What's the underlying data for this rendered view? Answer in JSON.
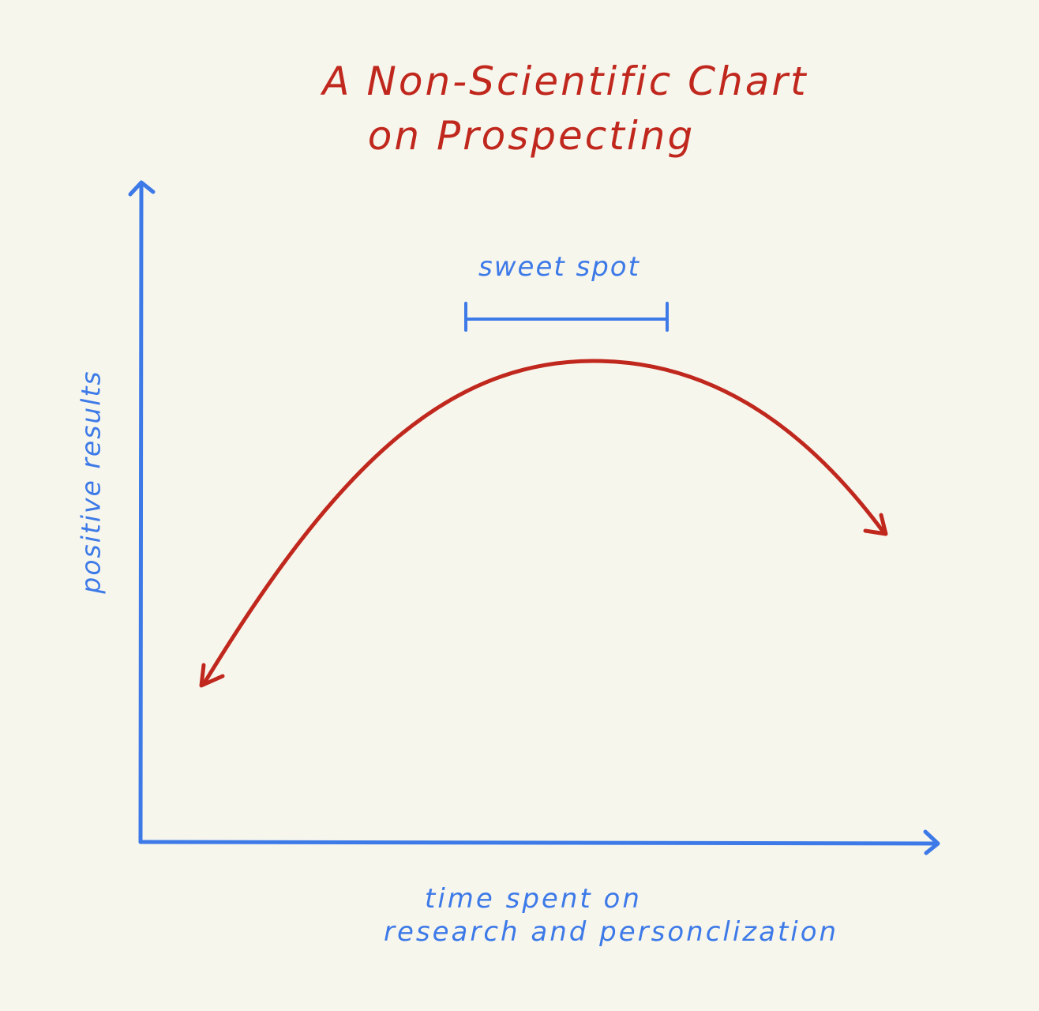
{
  "title": {
    "line1": "A Non-Scientific Chart",
    "line2": "on Prospecting"
  },
  "annotation": {
    "sweet_spot": "sweet spot"
  },
  "axes": {
    "y_label": "positive results",
    "x_label_line1": "time spent on",
    "x_label_line2": "research and personclization"
  },
  "colors": {
    "background": "#f7f6ed",
    "axis": "#3d7ae8",
    "curve": "#c0281e"
  }
}
